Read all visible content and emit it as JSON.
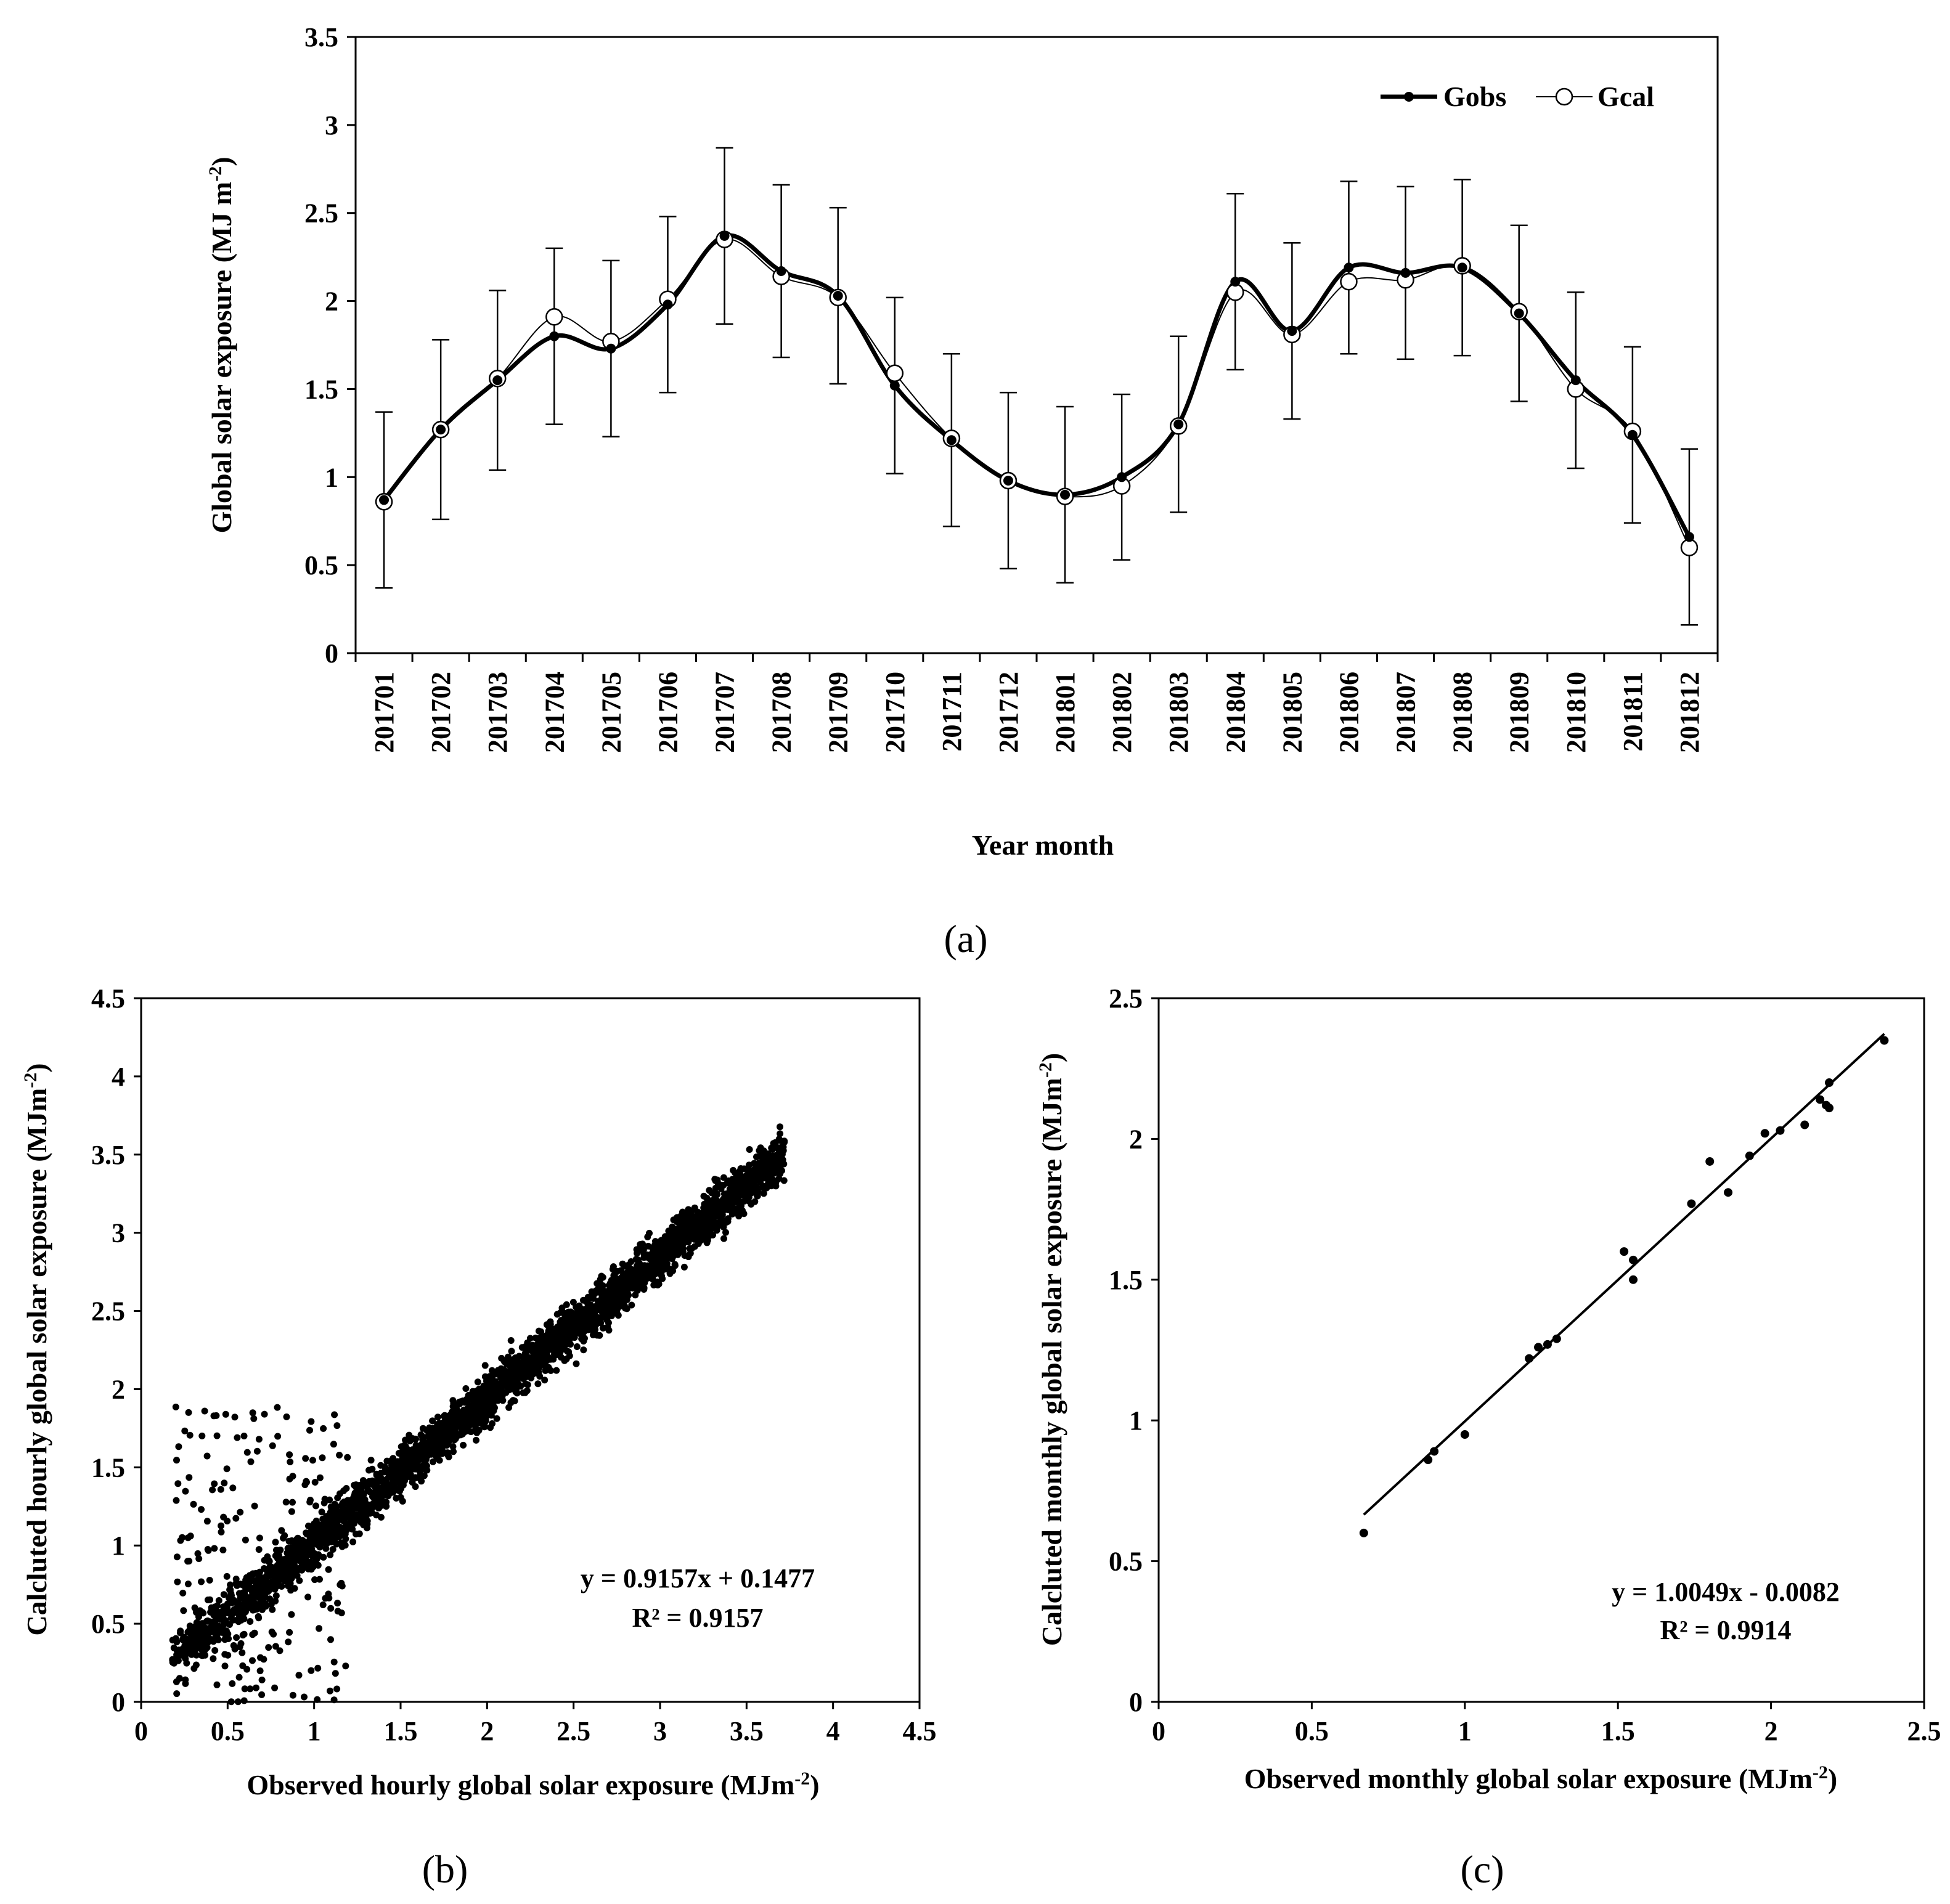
{
  "chart_data": [
    {
      "id": "a",
      "type": "line",
      "panel_label": "(a)",
      "panel_letter": "a",
      "xlabel": "Year month",
      "ylabel": "Global solar exposure (MJ m",
      "ylabel_sup": "-2",
      "ylabel_end": ")",
      "ylim": [
        0,
        3.5
      ],
      "yticks": [
        "0",
        "0.5",
        "1",
        "1.5",
        "2",
        "2.5",
        "3",
        "3.5"
      ],
      "categories": [
        "201701",
        "201702",
        "201703",
        "201704",
        "201705",
        "201706",
        "201707",
        "201708",
        "201709",
        "201710",
        "201711",
        "201712",
        "201801",
        "201802",
        "201803",
        "201804",
        "201805",
        "201806",
        "201807",
        "201808",
        "201809",
        "201810",
        "201811",
        "201812"
      ],
      "series": [
        {
          "name": "Gobs",
          "marker": "filled-dot",
          "line": "thick",
          "values": [
            0.87,
            1.27,
            1.55,
            1.8,
            1.73,
            1.98,
            2.37,
            2.17,
            2.03,
            1.52,
            1.21,
            0.98,
            0.9,
            1.0,
            1.3,
            2.11,
            1.83,
            2.19,
            2.16,
            2.19,
            1.93,
            1.55,
            1.24,
            0.66
          ],
          "error": [
            0.5,
            0.51,
            0.51,
            0.5,
            0.5,
            0.5,
            0.5,
            0.49,
            0.5,
            0.5,
            0.49,
            0.5,
            0.5,
            0.47,
            0.5,
            0.5,
            0.5,
            0.49,
            0.49,
            0.5,
            0.5,
            0.5,
            0.5,
            0.5
          ]
        },
        {
          "name": "Gcal",
          "marker": "open-circle",
          "line": "thin",
          "values": [
            0.86,
            1.27,
            1.56,
            1.91,
            1.77,
            2.01,
            2.35,
            2.14,
            2.02,
            1.59,
            1.22,
            0.98,
            0.89,
            0.95,
            1.29,
            2.05,
            1.81,
            2.11,
            2.12,
            2.2,
            1.94,
            1.5,
            1.26,
            0.6
          ]
        }
      ]
    },
    {
      "id": "b",
      "type": "scatter",
      "panel_label": "(b)",
      "panel_letter": "b",
      "xlabel": "Observed hourly  global solar exposure (MJm",
      "xlabel_sup": "-2",
      "xlabel_end": ")",
      "ylabel": "Calcluted hourly  global solar exposure (MJm",
      "ylabel_sup": "-2",
      "ylabel_end": ")",
      "xlim": [
        0,
        4.5
      ],
      "ylim": [
        0,
        4.5
      ],
      "xticks": [
        "0",
        "0.5",
        "1",
        "1.5",
        "2",
        "2.5",
        "3",
        "3.5",
        "4",
        "4.5"
      ],
      "yticks": [
        "0",
        "0.5",
        "1",
        "1.5",
        "2",
        "2.5",
        "3",
        "3.5",
        "4",
        "4.5"
      ],
      "equation": "y = 0.9157x + 0.1477",
      "r2": "R² = 0.9157",
      "fit": {
        "slope": 0.9157,
        "intercept": 0.1477
      },
      "point_count": 3000,
      "outlier_count": 220,
      "x_range": [
        0.18,
        3.72
      ],
      "noise_sd": 0.11
    },
    {
      "id": "c",
      "type": "scatter",
      "panel_label": "(c)",
      "panel_letter": "c",
      "xlabel": "Observed monthly  global solar exposure (MJm",
      "xlabel_sup": "-2",
      "xlabel_end": ")",
      "ylabel": "Calcluted monthly  global solar exposure (MJm",
      "ylabel_sup": "-2",
      "ylabel_end": ")",
      "xlim": [
        0,
        2.5
      ],
      "ylim": [
        0,
        2.5
      ],
      "xticks": [
        "0",
        "0.5",
        "1",
        "1.5",
        "2",
        "2.5"
      ],
      "yticks": [
        "0",
        "0.5",
        "1",
        "1.5",
        "2",
        "2.5"
      ],
      "equation": "y = 1.0049x - 0.0082",
      "r2": "R² = 0.9914",
      "fit": {
        "slope": 1.0049,
        "intercept": -0.0082,
        "x_from": 0.67,
        "x_to": 2.37
      },
      "x": [
        0.67,
        0.88,
        0.9,
        1.0,
        1.21,
        1.24,
        1.27,
        1.3,
        1.52,
        1.55,
        1.55,
        1.74,
        1.8,
        1.86,
        1.93,
        1.98,
        2.03,
        2.11,
        2.16,
        2.18,
        2.19,
        2.19,
        2.37
      ],
      "y": [
        0.6,
        0.86,
        0.89,
        0.95,
        1.22,
        1.26,
        1.27,
        1.29,
        1.6,
        1.57,
        1.5,
        1.77,
        1.92,
        1.81,
        1.94,
        2.02,
        2.03,
        2.05,
        2.14,
        2.12,
        2.11,
        2.2,
        2.35
      ]
    }
  ]
}
